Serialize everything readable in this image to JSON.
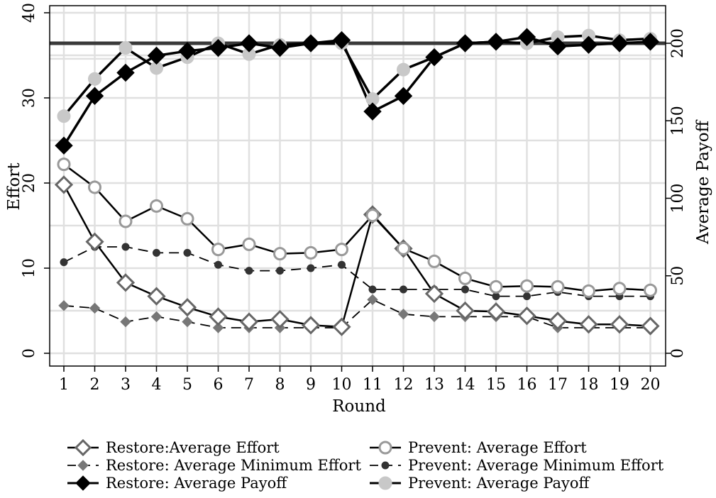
{
  "chart_data": {
    "type": "line",
    "title": "",
    "xlabel": "Round",
    "ylabel_left": "Effort",
    "ylabel_right": "Average Payoff",
    "x": [
      1,
      2,
      3,
      4,
      5,
      6,
      7,
      8,
      9,
      10,
      11,
      12,
      13,
      14,
      15,
      16,
      17,
      18,
      19,
      20
    ],
    "x_ticks": [
      "1",
      "2",
      "3",
      "4",
      "5",
      "6",
      "7",
      "8",
      "9",
      "10",
      "11",
      "12",
      "13",
      "14",
      "15",
      "16",
      "17",
      "18",
      "19",
      "20"
    ],
    "ylim_left": [
      0,
      40
    ],
    "yticks_left": [
      "0",
      "10",
      "20",
      "30",
      "40"
    ],
    "ylim_right": [
      0,
      220
    ],
    "yticks_right": [
      "0",
      "50",
      "100",
      "150",
      "200"
    ],
    "grid": true,
    "reference_line_payoff": 200,
    "legend_position": "bottom",
    "series": [
      {
        "name": "Restore:Average Effort",
        "axis": "left",
        "color": "#666666",
        "values": [
          19.8,
          13.1,
          8.3,
          6.7,
          5.4,
          4.3,
          3.7,
          4.0,
          3.3,
          3.1,
          16.3,
          12.3,
          7.0,
          5.0,
          4.9,
          4.4,
          3.8,
          3.4,
          3.4,
          3.2
        ]
      },
      {
        "name": "Restore: Average Minimum Effort",
        "axis": "left",
        "color": "#777777",
        "values": [
          5.6,
          5.3,
          3.7,
          4.3,
          3.7,
          3.0,
          3.0,
          3.0,
          3.0,
          3.0,
          6.3,
          4.6,
          4.3,
          4.3,
          4.3,
          4.3,
          3.0,
          3.0,
          3.0,
          3.0
        ]
      },
      {
        "name": "Restore: Average Payoff",
        "axis": "right",
        "color": "#000000",
        "values": [
          134,
          166,
          181,
          192,
          195,
          197,
          200,
          197,
          200,
          202,
          156,
          166,
          191,
          200,
          201,
          204,
          198,
          199,
          200,
          201
        ]
      },
      {
        "name": "Prevent: Average Effort",
        "axis": "left",
        "color": "#999999",
        "values": [
          22.2,
          19.5,
          15.5,
          17.3,
          15.8,
          12.2,
          12.8,
          11.7,
          11.8,
          12.2,
          16.2,
          12.3,
          10.8,
          8.8,
          7.8,
          7.9,
          7.8,
          7.3,
          7.6,
          7.4
        ]
      },
      {
        "name": "Prevent: Average Minimum Effort",
        "axis": "left",
        "color": "#333333",
        "values": [
          10.7,
          12.5,
          12.5,
          11.8,
          11.8,
          10.4,
          9.7,
          9.7,
          10.0,
          10.4,
          7.5,
          7.5,
          7.5,
          7.5,
          6.7,
          6.7,
          7.2,
          6.7,
          6.7,
          6.7
        ]
      },
      {
        "name": "Prevent: Average Payoff",
        "axis": "right",
        "color": "#c8c8c8",
        "values": [
          153,
          177,
          197,
          184,
          191,
          200,
          193,
          199,
          200,
          200,
          164,
          183,
          191,
          200,
          201,
          200,
          204,
          205,
          202,
          203
        ]
      }
    ]
  }
}
